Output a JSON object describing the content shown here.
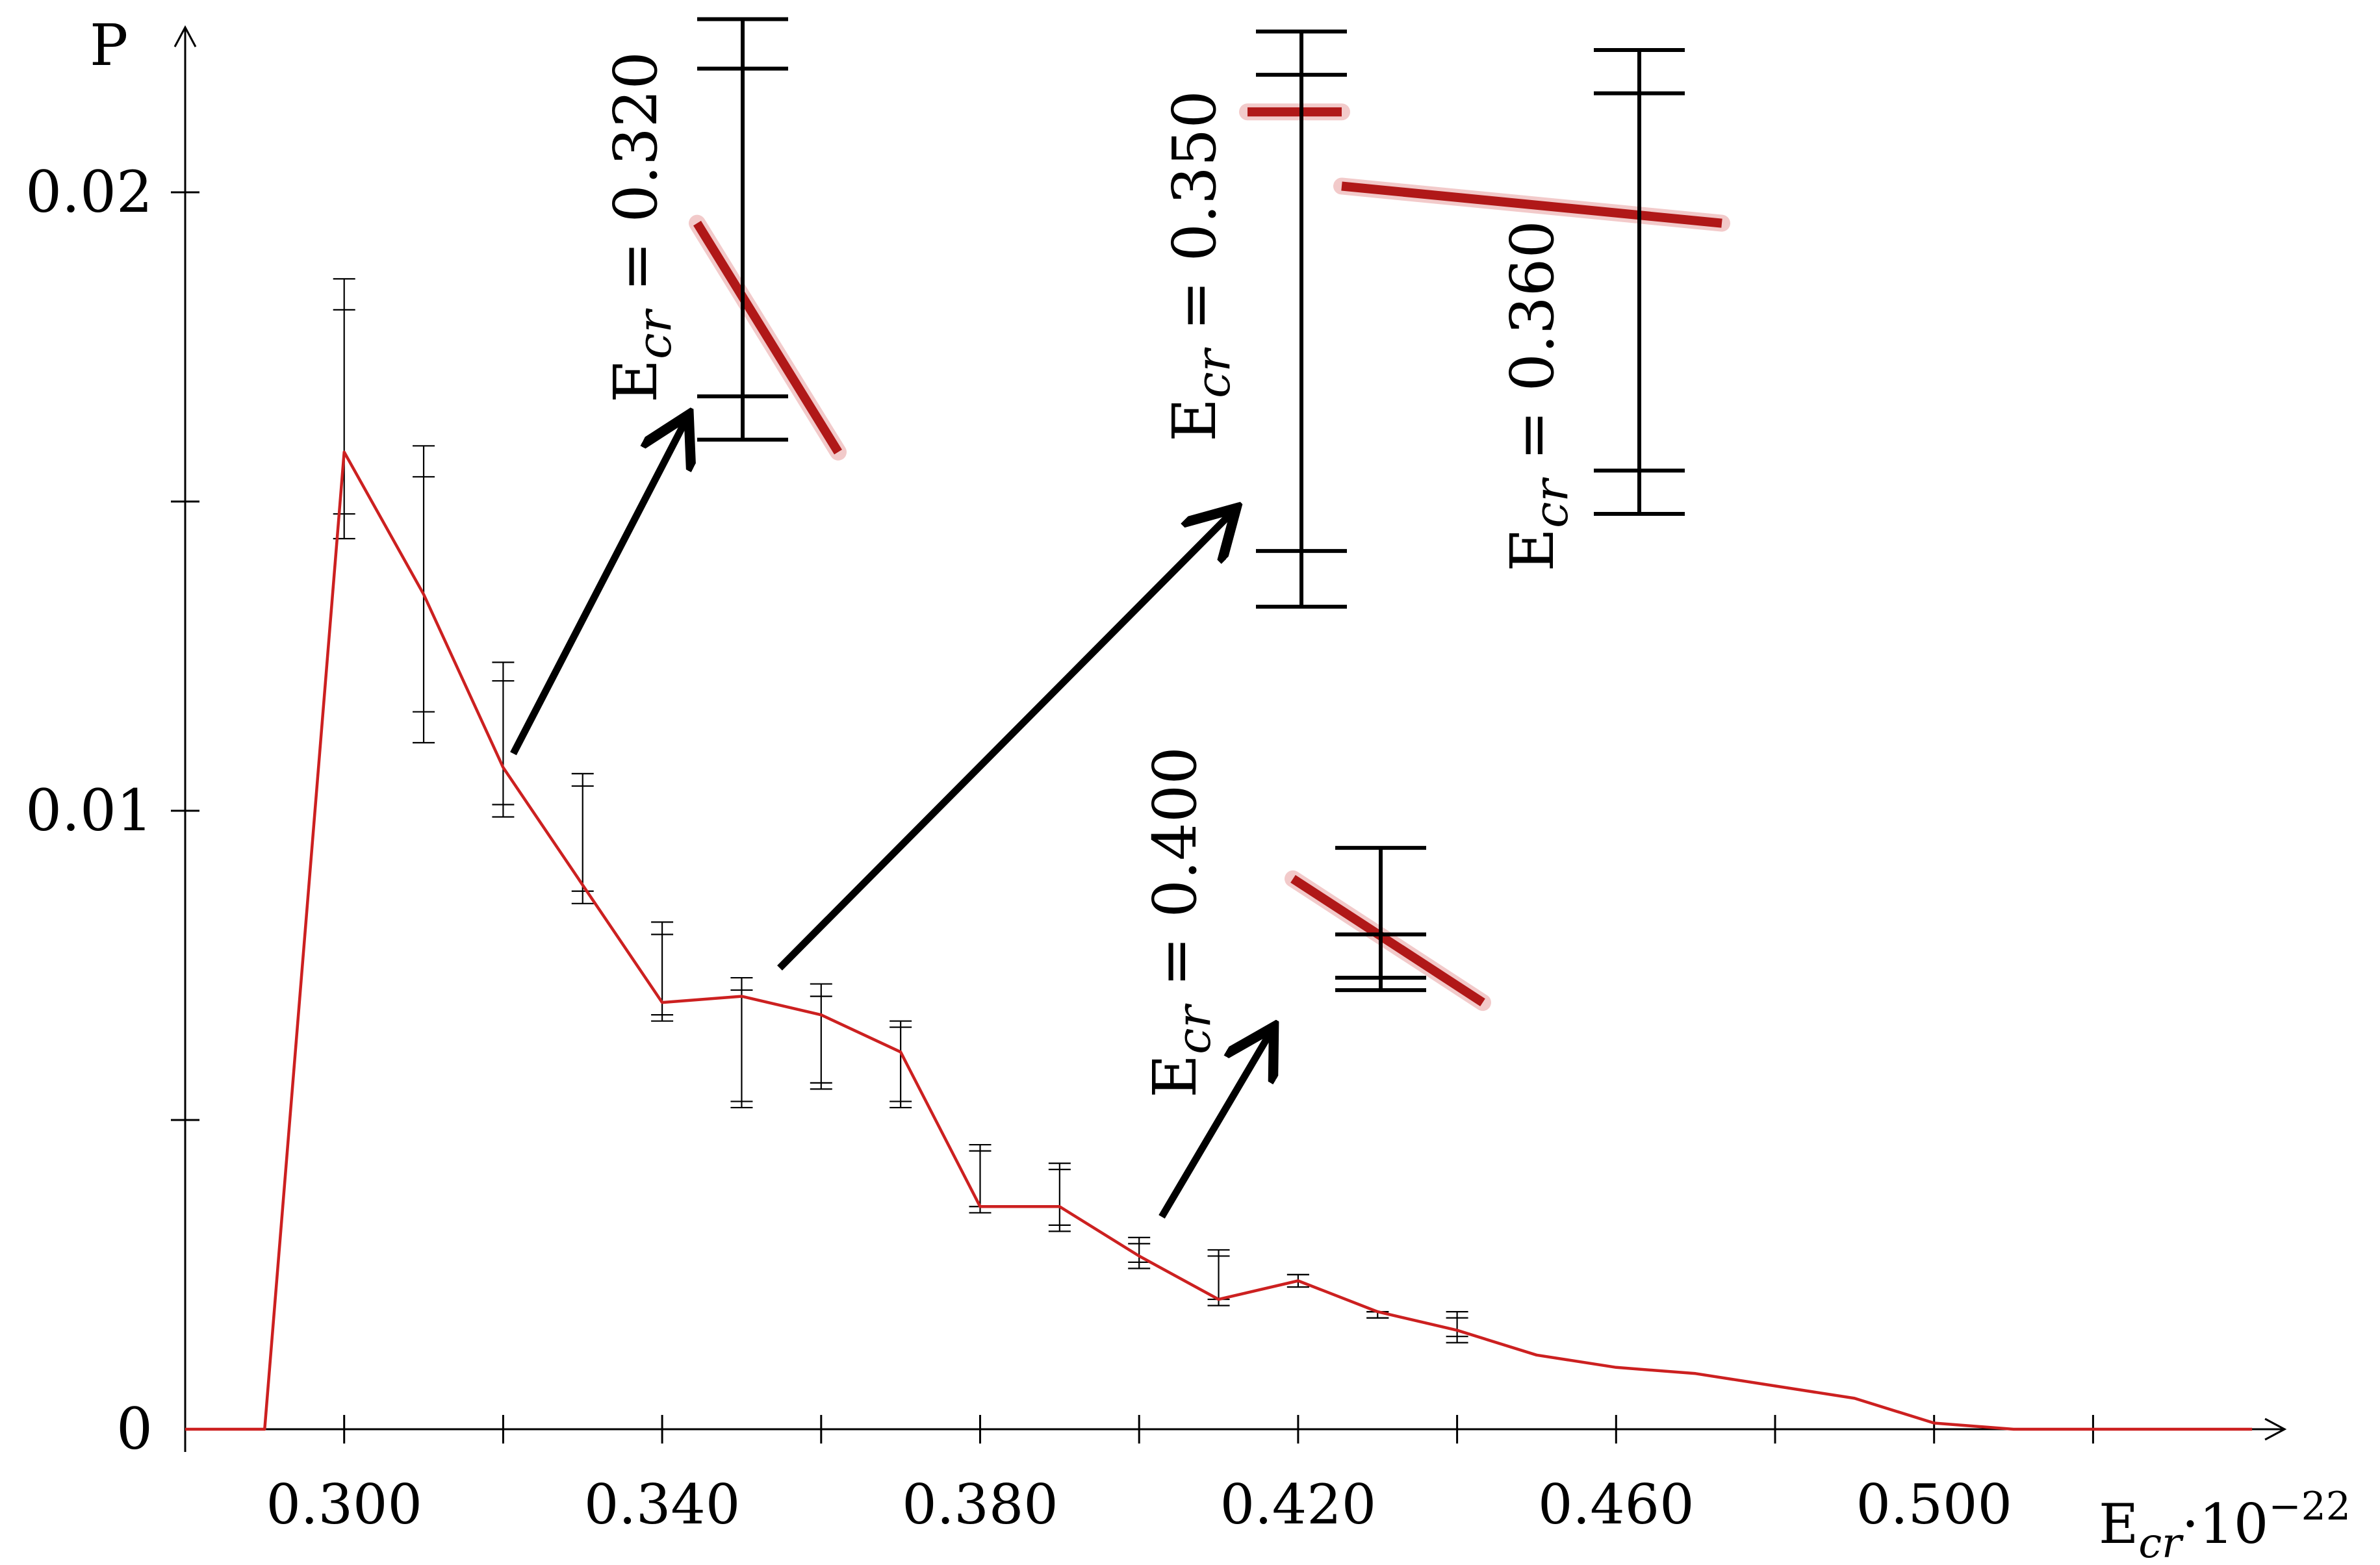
{
  "chart_data": {
    "type": "line",
    "title": "",
    "ylabel": "P",
    "xlabel_main": "E",
    "xlabel_sub": "cr",
    "xlabel_suffix": "·10",
    "xlabel_exp": "−22",
    "xlim": [
      0.28,
      0.54
    ],
    "ylim": [
      0,
      0.0225
    ],
    "xticks": [
      0.3,
      0.32,
      0.34,
      0.36,
      0.38,
      0.4,
      0.42,
      0.44,
      0.46,
      0.48,
      0.5,
      0.52
    ],
    "xtick_labels": [
      {
        "value": 0.3,
        "label": "0.300"
      },
      {
        "value": 0.34,
        "label": "0.340"
      },
      {
        "value": 0.38,
        "label": "0.380"
      },
      {
        "value": 0.42,
        "label": "0.420"
      },
      {
        "value": 0.46,
        "label": "0.460"
      },
      {
        "value": 0.5,
        "label": "0.500"
      }
    ],
    "yticks": [
      0,
      0.005,
      0.01,
      0.015,
      0.02
    ],
    "ytick_labels": [
      {
        "value": 0,
        "label": "0"
      },
      {
        "value": 0.01,
        "label": "0.01"
      },
      {
        "value": 0.02,
        "label": "0.02"
      }
    ],
    "series": [
      {
        "name": "P",
        "color": "#cc2020",
        "x": [
          0.28,
          0.29,
          0.3,
          0.31,
          0.32,
          0.33,
          0.34,
          0.35,
          0.36,
          0.37,
          0.38,
          0.39,
          0.4,
          0.41,
          0.42,
          0.43,
          0.44,
          0.45,
          0.46,
          0.47,
          0.48,
          0.49,
          0.5,
          0.51,
          0.52,
          0.53,
          0.54
        ],
        "y": [
          0,
          0,
          0.0158,
          0.0135,
          0.0107,
          0.0088,
          0.0069,
          0.007,
          0.0067,
          0.0061,
          0.0036,
          0.0036,
          0.0028,
          0.0021,
          0.0024,
          0.0019,
          0.0016,
          0.0012,
          0.001,
          0.0009,
          0.0007,
          0.0005,
          0.0001,
          0,
          0,
          0,
          0
        ]
      }
    ],
    "error_bars": [
      {
        "x": 0.3,
        "outer": [
          0.0144,
          0.0186
        ],
        "inner": [
          0.0148,
          0.0181
        ]
      },
      {
        "x": 0.31,
        "outer": [
          0.0111,
          0.0159
        ],
        "inner": [
          0.0116,
          0.0154
        ]
      },
      {
        "x": 0.32,
        "outer": [
          0.0099,
          0.0124
        ],
        "inner": [
          0.0101,
          0.0121
        ]
      },
      {
        "x": 0.33,
        "outer": [
          0.0085,
          0.0106
        ],
        "inner": [
          0.0087,
          0.0104
        ]
      },
      {
        "x": 0.34,
        "outer": [
          0.0066,
          0.0082
        ],
        "inner": [
          0.0067,
          0.008
        ]
      },
      {
        "x": 0.35,
        "outer": [
          0.0052,
          0.0073
        ],
        "inner": [
          0.0053,
          0.0071
        ]
      },
      {
        "x": 0.36,
        "outer": [
          0.0055,
          0.0072
        ],
        "inner": [
          0.0056,
          0.007
        ]
      },
      {
        "x": 0.37,
        "outer": [
          0.0052,
          0.0066
        ],
        "inner": [
          0.0053,
          0.0065
        ]
      },
      {
        "x": 0.38,
        "outer": [
          0.0035,
          0.0046
        ],
        "inner": [
          0.0036,
          0.0045
        ]
      },
      {
        "x": 0.39,
        "outer": [
          0.0032,
          0.0043
        ],
        "inner": [
          0.0033,
          0.0042
        ]
      },
      {
        "x": 0.4,
        "outer": [
          0.0026,
          0.0031
        ],
        "inner": [
          0.0027,
          0.003
        ]
      },
      {
        "x": 0.41,
        "outer": [
          0.002,
          0.0029
        ],
        "inner": [
          0.0021,
          0.0028
        ]
      },
      {
        "x": 0.42,
        "outer": [
          0.0023,
          0.0025
        ],
        "inner": [
          0.0023,
          0.0025
        ]
      },
      {
        "x": 0.43,
        "outer": [
          0.0018,
          0.0019
        ],
        "inner": [
          0.0018,
          0.0019
        ]
      },
      {
        "x": 0.44,
        "outer": [
          0.0014,
          0.0019
        ],
        "inner": [
          0.0015,
          0.0018
        ]
      }
    ],
    "annotations": [
      {
        "label_main": "E",
        "label_sub": "cr",
        "label_value": " = 0.320",
        "point": {
          "x": 0.32,
          "y": 0.0107
        },
        "zoom": {
          "bar_outer": [
            0.016,
            0.0228
          ],
          "bar_inner": [
            0.0167,
            0.022
          ],
          "line_from": 0.0195,
          "line_to": 0.0158
        }
      },
      {
        "label_main": "E",
        "label_sub": "cr",
        "label_value": " = 0.350",
        "point": {
          "x": 0.35,
          "y": 0.007
        },
        "zoom": {
          "bar_outer": [
            0.0133,
            0.0226
          ],
          "bar_inner": [
            0.0142,
            0.0219
          ],
          "line_from": 0.0213,
          "line_to": 0.0213
        }
      },
      {
        "label_main": "E",
        "label_sub": "cr",
        "label_value": " = 0.360",
        "point": {
          "x": 0.36,
          "y": 0.0067
        },
        "zoom": {
          "bar_outer": [
            0.0148,
            0.0223
          ],
          "bar_inner": [
            0.0155,
            0.0216
          ],
          "line_from": 0.0201,
          "line_to": 0.0195
        }
      },
      {
        "label_main": "E",
        "label_sub": "cr",
        "label_value": " = 0.400",
        "point": {
          "x": 0.4,
          "y": 0.0028
        },
        "zoom": {
          "bar_outer": [
            0.0071,
            0.0094
          ],
          "bar_inner": [
            0.0073,
            0.008
          ],
          "line_from": 0.0089,
          "line_to": 0.0069
        }
      }
    ]
  }
}
